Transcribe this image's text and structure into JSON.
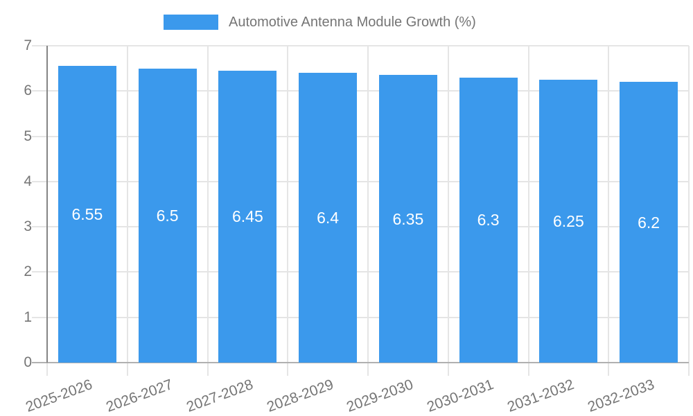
{
  "legend": {
    "label": "Automotive Antenna Module Growth (%)"
  },
  "chart_data": {
    "type": "bar",
    "title": "Automotive Antenna Module Growth (%)",
    "categories": [
      "2025-2026",
      "2026-2027",
      "2027-2028",
      "2028-2029",
      "2029-2030",
      "2030-2031",
      "2031-2032",
      "2032-2033"
    ],
    "values": [
      6.55,
      6.5,
      6.45,
      6.4,
      6.35,
      6.3,
      6.25,
      6.2
    ],
    "xlabel": "",
    "ylabel": "",
    "ylim": [
      0,
      7
    ],
    "yticks": [
      0,
      1,
      2,
      3,
      4,
      5,
      6,
      7
    ],
    "grid": true,
    "legend_position": "top-center",
    "value_labels_inside_bars": true,
    "x_label_rotation_deg": -20,
    "colors": {
      "bar": "#3B99EC",
      "grid_line": "#E5E5E5",
      "zero_line": "#B0B0B0",
      "y_axis_line": "#858585",
      "axis_text": "#757575",
      "value_label": "#FFFFFF"
    }
  }
}
